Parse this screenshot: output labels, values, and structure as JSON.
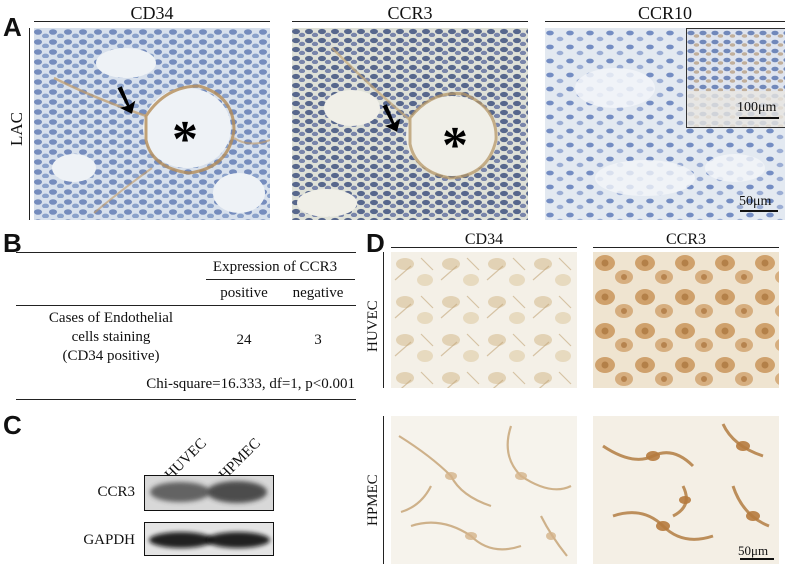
{
  "panels": {
    "A": {
      "letter": "A",
      "row_label": "LAC",
      "columns": [
        "CD34",
        "CCR3",
        "CCR10"
      ],
      "inset_scale": "100μm",
      "scale": "50μm",
      "arrow_glyph": "➘",
      "asterisk_glyph": "*"
    },
    "B": {
      "letter": "B",
      "header": "Expression of CCR3",
      "sub_headers": [
        "positive",
        "negative"
      ],
      "row_label_lines": [
        "Cases of Endothelial",
        "cells staining",
        "(CD34 positive)"
      ],
      "values": [
        "24",
        "3"
      ],
      "footer": "Chi-square=16.333, df=1, p<0.001"
    },
    "C": {
      "letter": "C",
      "lanes": [
        "HUVEC",
        "HPMEC"
      ],
      "bands": [
        "CCR3",
        "GAPDH"
      ]
    },
    "D": {
      "letter": "D",
      "columns": [
        "CD34",
        "CCR3"
      ],
      "rows": [
        "HUVEC",
        "HPMEC"
      ],
      "scale": "50μm"
    }
  },
  "colors": {
    "hematoxylin": "#4f6aa8",
    "dab_brown": "#a87a45",
    "tissue_bg": "#dbe3ee",
    "culture_bg": "#f3ece0"
  }
}
